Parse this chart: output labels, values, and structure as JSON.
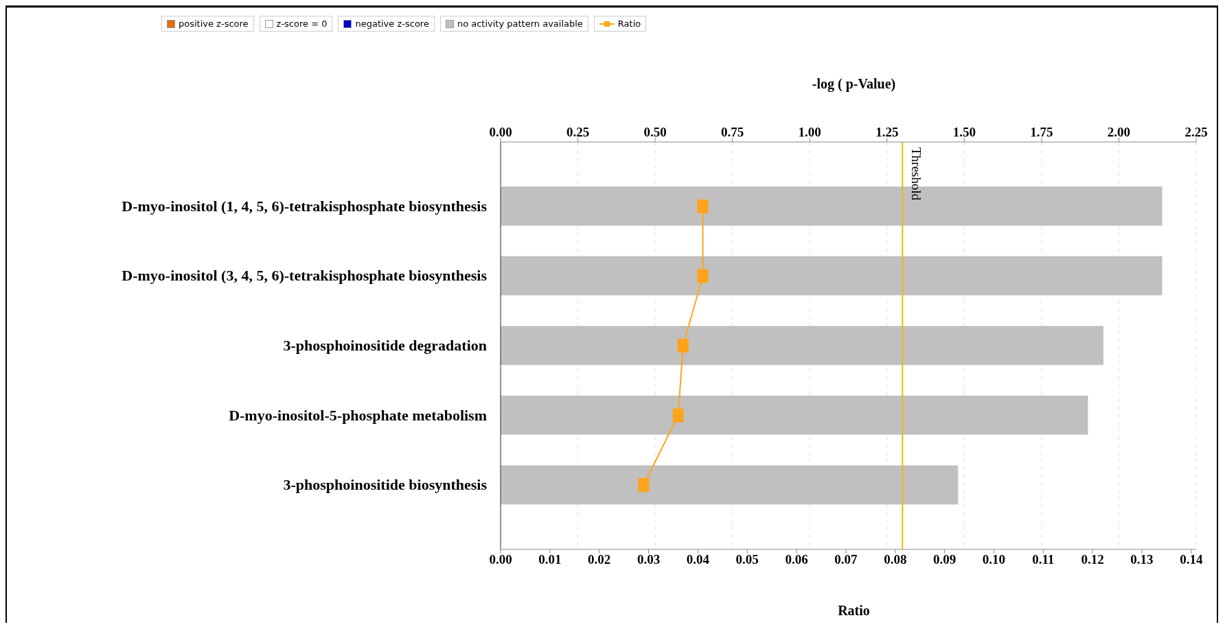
{
  "chart_data": {
    "type": "bar",
    "orientation": "horizontal",
    "categories": [
      "D-myo-inositol (1, 4, 5, 6)-tetrakisphosphate biosynthesis",
      "D-myo-inositol (3, 4, 5, 6)-tetrakisphosphate biosynthesis",
      "3-phosphoinositide degradation",
      "D-myo-inositol-5-phosphate  metabolism",
      "3-phosphoinositide biosynthesis"
    ],
    "series": [
      {
        "name": "positive z-score",
        "type": "bar",
        "axis": "x2",
        "color": "#e46c0a",
        "values": [
          null,
          null,
          null,
          null,
          null
        ]
      },
      {
        "name": "z-score = 0",
        "type": "bar",
        "axis": "x2",
        "color": "#ffffff",
        "values": [
          null,
          null,
          null,
          null,
          null
        ]
      },
      {
        "name": "negative z-score",
        "type": "bar",
        "axis": "x2",
        "color": "#0000cc",
        "values": [
          null,
          null,
          null,
          null,
          null
        ]
      },
      {
        "name": "no activity pattern available",
        "type": "bar",
        "axis": "x2",
        "color": "#c0c0c0",
        "values": [
          2.14,
          2.14,
          1.95,
          1.9,
          1.48
        ]
      },
      {
        "name": "Ratio",
        "type": "line",
        "color": "#ffa31a",
        "marker": "square",
        "values": [
          0.041,
          0.041,
          0.037,
          0.036,
          0.029
        ]
      }
    ],
    "x2label": "-log ( p-Value)",
    "x2lim": [
      0,
      2.25
    ],
    "x2ticks": [
      {
        "value": 0,
        "label": "0.00"
      },
      0.25,
      {
        "value": 0.5,
        "label": "0.50"
      },
      0.75,
      {
        "value": 1,
        "label": "1.00"
      },
      1.25,
      {
        "value": 1.5,
        "label": "1.50"
      },
      1.75,
      {
        "value": 2,
        "label": "2.00"
      },
      2.25
    ],
    "xlabel": "Ratio",
    "xlim": [
      0,
      0.141
    ],
    "xticks": [
      {
        "value": 0,
        "label": "0.00"
      },
      0.01,
      0.02,
      0.03,
      0.04,
      0.05,
      0.06,
      0.07,
      0.08,
      0.09,
      {
        "value": 0.1,
        "label": "0.10"
      },
      0.11,
      0.12,
      0.13,
      0.14
    ],
    "ref_lines": [
      {
        "axis": "x2",
        "value": 1.3,
        "label": "Threshold",
        "color": "#f5b800"
      }
    ],
    "grid": "x",
    "legend": "top"
  }
}
